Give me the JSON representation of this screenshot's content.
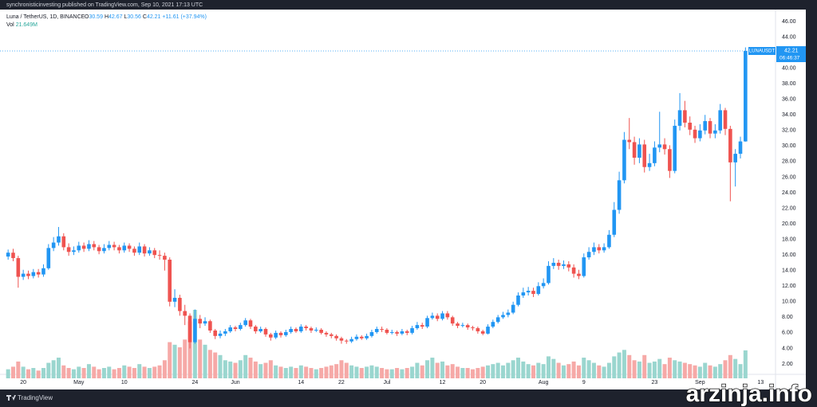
{
  "chart_data": {
    "type": "candlestick",
    "publisher": "synchronisticinvesting published on TradingView.com, Sep 10, 2021 17:13 UTC",
    "symbol": "Luna / TetherUS, 1D, BINANCE",
    "ohlc_labels": [
      "O",
      "H",
      "L",
      "C"
    ],
    "change": "+11.61 (+37.94%)",
    "volume_title": "Vol",
    "volume_label": "21.649M",
    "price_tag_symbol": "LUNAUSDT",
    "price_tag_countdown": "06:46:37",
    "up_color": "#2196f3",
    "down_color": "#ef5350",
    "volume_up_color": "#9ad6cf",
    "volume_down_color": "#f6a9a7",
    "categories": [
      null,
      null,
      null,
      "20",
      null,
      null,
      null,
      null,
      null,
      null,
      null,
      null,
      null,
      null,
      "May",
      null,
      null,
      null,
      null,
      null,
      null,
      null,
      null,
      "10",
      null,
      null,
      null,
      null,
      null,
      null,
      null,
      null,
      null,
      null,
      null,
      null,
      null,
      "24",
      null,
      null,
      null,
      null,
      null,
      null,
      null,
      "Jun",
      null,
      null,
      null,
      null,
      null,
      null,
      null,
      null,
      null,
      null,
      null,
      null,
      "14",
      null,
      null,
      null,
      null,
      null,
      null,
      null,
      "22",
      null,
      null,
      null,
      null,
      null,
      null,
      null,
      null,
      "Jul",
      null,
      null,
      null,
      null,
      null,
      null,
      null,
      null,
      null,
      null,
      "12",
      null,
      null,
      null,
      null,
      null,
      null,
      null,
      "20",
      null,
      null,
      null,
      null,
      null,
      null,
      null,
      null,
      null,
      null,
      null,
      "Aug",
      null,
      null,
      null,
      null,
      null,
      null,
      null,
      "9",
      null,
      null,
      null,
      null,
      null,
      null,
      null,
      null,
      null,
      null,
      null,
      null,
      null,
      "23",
      null,
      null,
      null,
      null,
      null,
      null,
      null,
      null,
      "Sep",
      null,
      null,
      null,
      null,
      null,
      null,
      null,
      null,
      null,
      null,
      null,
      "13"
    ],
    "open": [
      15.8,
      16.3,
      15.6,
      13.2,
      13.6,
      13.3,
      13.8,
      13.5,
      14.3,
      16.9,
      17.6,
      18.4,
      17.0,
      16.4,
      16.6,
      17.2,
      16.8,
      17.4,
      17.0,
      16.5,
      16.9,
      17.3,
      17.0,
      16.6,
      17.2,
      16.8,
      16.3,
      17.1,
      16.2,
      16.6,
      16.0,
      15.9,
      15.4,
      10.0,
      10.5,
      8.8,
      8.2,
      4.8,
      7.8,
      7.2,
      7.5,
      6.3,
      5.6,
      5.9,
      6.2,
      6.7,
      6.5,
      7.0,
      7.6,
      6.8,
      6.2,
      6.5,
      5.8,
      5.4,
      6.0,
      5.7,
      6.1,
      6.5,
      6.2,
      6.8,
      6.6,
      6.3,
      6.4,
      6.0,
      5.8,
      5.6,
      5.3,
      5.0,
      4.9,
      5.2,
      5.5,
      5.3,
      5.6,
      6.1,
      6.5,
      6.4,
      6.0,
      6.1,
      5.9,
      6.2,
      6.0,
      6.6,
      7.0,
      6.8,
      7.9,
      8.2,
      7.8,
      8.5,
      8.0,
      7.2,
      6.9,
      7.0,
      6.7,
      6.6,
      6.2,
      5.9,
      6.8,
      7.4,
      8.0,
      8.3,
      8.6,
      9.6,
      10.8,
      11.2,
      11.4,
      11.0,
      12.0,
      12.4,
      14.6,
      15.0,
      14.6,
      14.8,
      14.4,
      13.6,
      13.3,
      15.7,
      16.4,
      17.0,
      16.6,
      17.0,
      18.6,
      21.8,
      25.6,
      30.8,
      30.5,
      28.5,
      30.2,
      27.3,
      27.8,
      29.8,
      30.2,
      29.6,
      26.8,
      32.6,
      34.6,
      33.0,
      32.1,
      31.0,
      32.0,
      33.2,
      31.6,
      32.0,
      34.6,
      32.2,
      27.9,
      29.0,
      30.59,
      null,
      null,
      null
    ],
    "high": [
      16.7,
      16.8,
      15.9,
      14.1,
      14.0,
      14.2,
      14.2,
      14.8,
      17.4,
      18.3,
      19.6,
      18.8,
      17.5,
      17.1,
      17.7,
      17.6,
      17.9,
      17.8,
      17.3,
      17.4,
      17.8,
      17.7,
      17.3,
      17.6,
      17.5,
      17.1,
      17.6,
      17.4,
      17.0,
      16.9,
      16.6,
      16.3,
      15.7,
      11.6,
      10.9,
      9.6,
      8.5,
      9.0,
      8.3,
      8.0,
      7.7,
      6.5,
      6.3,
      6.5,
      7.0,
      6.9,
      7.3,
      7.9,
      7.8,
      7.0,
      6.8,
      6.7,
      6.0,
      6.3,
      6.2,
      6.4,
      6.8,
      6.7,
      7.1,
      7.0,
      6.8,
      6.7,
      6.6,
      6.2,
      6.0,
      5.8,
      5.5,
      5.2,
      5.5,
      5.8,
      5.7,
      5.9,
      6.4,
      6.8,
      6.8,
      6.6,
      6.4,
      6.3,
      6.5,
      6.4,
      6.9,
      7.4,
      7.3,
      8.2,
      8.6,
      8.5,
      8.8,
      8.8,
      8.2,
      7.4,
      7.3,
      7.2,
      6.9,
      6.8,
      6.4,
      7.1,
      7.7,
      8.3,
      8.7,
      9.0,
      10.0,
      11.2,
      11.8,
      11.9,
      11.8,
      12.5,
      13.0,
      15.2,
      15.6,
      15.4,
      15.3,
      15.2,
      14.8,
      14.1,
      16.2,
      17.0,
      17.6,
      17.4,
      17.5,
      19.2,
      22.8,
      26.7,
      31.8,
      33.6,
      31.2,
      31.0,
      30.8,
      29.0,
      30.6,
      34.4,
      31.0,
      30.1,
      33.4,
      36.8,
      35.8,
      33.8,
      32.6,
      32.8,
      34.0,
      33.6,
      32.8,
      35.4,
      34.9,
      32.6,
      29.6,
      31.2,
      42.67,
      null,
      null,
      null
    ],
    "low": [
      15.4,
      15.2,
      11.8,
      12.8,
      12.9,
      13.0,
      13.1,
      13.2,
      14.1,
      16.5,
      17.2,
      16.6,
      15.9,
      16.0,
      16.3,
      16.4,
      16.5,
      16.6,
      16.1,
      16.2,
      16.6,
      16.6,
      16.2,
      16.3,
      16.4,
      15.9,
      16.0,
      15.8,
      15.9,
      15.6,
      15.4,
      14.0,
      9.4,
      9.3,
      8.2,
      7.0,
      4.0,
      4.6,
      6.6,
      6.9,
      6.0,
      5.2,
      5.3,
      5.6,
      6.0,
      6.2,
      6.3,
      6.8,
      6.5,
      5.9,
      6.0,
      5.5,
      5.0,
      5.2,
      5.4,
      5.5,
      5.9,
      6.0,
      6.0,
      6.3,
      6.0,
      6.1,
      5.8,
      5.5,
      5.3,
      5.0,
      4.6,
      4.6,
      4.7,
      5.0,
      5.1,
      5.1,
      5.4,
      5.9,
      6.1,
      5.8,
      5.8,
      5.6,
      5.7,
      5.7,
      5.8,
      6.4,
      6.5,
      6.6,
      7.7,
      7.5,
      7.6,
      7.7,
      6.9,
      6.6,
      6.7,
      6.4,
      6.3,
      5.9,
      5.7,
      5.8,
      6.6,
      7.2,
      7.8,
      8.0,
      8.4,
      9.4,
      10.5,
      10.8,
      10.6,
      10.8,
      11.7,
      12.2,
      14.2,
      14.1,
      14.2,
      13.9,
      13.1,
      12.9,
      13.1,
      15.4,
      16.0,
      16.2,
      16.3,
      16.8,
      18.3,
      21.3,
      25.2,
      29.6,
      27.6,
      27.8,
      26.6,
      26.8,
      27.4,
      29.2,
      28.9,
      25.9,
      26.5,
      32.0,
      32.4,
      31.4,
      30.4,
      30.6,
      31.5,
      31.0,
      31.0,
      31.6,
      31.4,
      22.9,
      24.8,
      28.4,
      30.56,
      null,
      null,
      null
    ],
    "close": [
      16.3,
      15.6,
      13.2,
      13.6,
      13.3,
      13.8,
      13.5,
      14.3,
      16.9,
      17.6,
      18.4,
      17.0,
      16.4,
      16.6,
      17.2,
      16.8,
      17.4,
      17.0,
      16.5,
      16.9,
      17.3,
      17.0,
      16.6,
      17.2,
      16.8,
      16.3,
      17.1,
      16.2,
      16.6,
      16.0,
      15.9,
      15.4,
      10.0,
      10.5,
      8.8,
      8.2,
      4.8,
      7.8,
      7.2,
      7.5,
      6.3,
      5.6,
      5.9,
      6.2,
      6.7,
      6.5,
      7.0,
      7.6,
      6.8,
      6.2,
      6.5,
      5.8,
      5.4,
      6.0,
      5.7,
      6.1,
      6.5,
      6.2,
      6.8,
      6.6,
      6.3,
      6.4,
      6.0,
      5.8,
      5.6,
      5.3,
      5.0,
      4.9,
      5.2,
      5.5,
      5.3,
      5.6,
      6.1,
      6.5,
      6.4,
      6.0,
      6.1,
      5.9,
      6.2,
      6.0,
      6.6,
      7.0,
      6.8,
      7.9,
      8.2,
      7.8,
      8.5,
      8.0,
      7.2,
      6.9,
      7.0,
      6.7,
      6.6,
      6.2,
      5.9,
      6.8,
      7.4,
      8.0,
      8.3,
      8.6,
      9.6,
      10.8,
      11.2,
      11.4,
      11.0,
      12.0,
      12.4,
      14.6,
      15.0,
      14.6,
      14.8,
      14.4,
      13.6,
      13.3,
      15.7,
      16.4,
      17.0,
      16.6,
      17.0,
      18.6,
      21.8,
      25.6,
      30.8,
      30.5,
      28.5,
      30.2,
      27.3,
      27.8,
      29.8,
      30.2,
      29.6,
      26.8,
      32.6,
      34.6,
      33.0,
      32.1,
      31.0,
      32.0,
      33.2,
      31.6,
      32.0,
      34.6,
      32.2,
      27.9,
      29.0,
      30.59,
      42.21,
      null,
      null,
      null
    ],
    "volume": [
      7,
      9,
      13,
      9,
      7,
      8,
      6,
      8,
      12,
      14,
      16,
      10,
      8,
      7,
      9,
      8,
      11,
      9,
      7,
      8,
      9,
      7,
      8,
      10,
      9,
      8,
      11,
      9,
      8,
      9,
      10,
      14,
      28,
      26,
      24,
      30,
      44,
      53,
      30,
      26,
      22,
      20,
      18,
      14,
      13,
      12,
      14,
      18,
      16,
      13,
      11,
      12,
      14,
      10,
      9,
      8,
      9,
      8,
      10,
      9,
      8,
      7,
      8,
      9,
      10,
      11,
      14,
      12,
      10,
      9,
      8,
      9,
      10,
      9,
      8,
      7,
      7,
      8,
      7,
      8,
      9,
      12,
      10,
      14,
      16,
      12,
      13,
      10,
      11,
      9,
      8,
      8,
      7,
      8,
      9,
      10,
      11,
      12,
      10,
      12,
      14,
      16,
      13,
      11,
      10,
      12,
      11,
      17,
      15,
      12,
      10,
      11,
      13,
      10,
      16,
      14,
      12,
      10,
      9,
      12,
      17,
      20,
      22,
      18,
      14,
      13,
      18,
      12,
      13,
      15,
      11,
      16,
      14,
      13,
      12,
      11,
      10,
      9,
      12,
      10,
      9,
      11,
      14,
      18,
      15,
      11,
      21.649,
      null,
      null,
      null
    ],
    "ylim": [
      0.67,
      47.53
    ],
    "yticks": [
      {
        "value": 2,
        "label": "2.00"
      },
      {
        "value": 4,
        "label": "4.00"
      },
      {
        "value": 6,
        "label": "6.00"
      },
      {
        "value": 8,
        "label": "8.00"
      },
      {
        "value": 10,
        "label": "10.00"
      },
      {
        "value": 12,
        "label": "12.00"
      },
      {
        "value": 14,
        "label": "14.00"
      },
      {
        "value": 16,
        "label": "16.00"
      },
      {
        "value": 18,
        "label": "18.00"
      },
      {
        "value": 20,
        "label": "20.00"
      },
      {
        "value": 22,
        "label": "22.00"
      },
      {
        "value": 24,
        "label": "24.00"
      },
      {
        "value": 26,
        "label": "26.00"
      },
      {
        "value": 28,
        "label": "28.00"
      },
      {
        "value": 30,
        "label": "30.00"
      },
      {
        "value": 32,
        "label": "32.00"
      },
      {
        "value": 34,
        "label": "34.00"
      },
      {
        "value": 36,
        "label": "36.00"
      },
      {
        "value": 38,
        "label": "38.00"
      },
      {
        "value": 40,
        "label": "40.00"
      },
      {
        "value": 42,
        "label": "42.00"
      },
      {
        "value": 44,
        "label": "44.00"
      },
      {
        "value": 46,
        "label": "46.00"
      }
    ]
  },
  "footer": {
    "brand": "TradingView"
  },
  "watermark": "arzinja.info"
}
